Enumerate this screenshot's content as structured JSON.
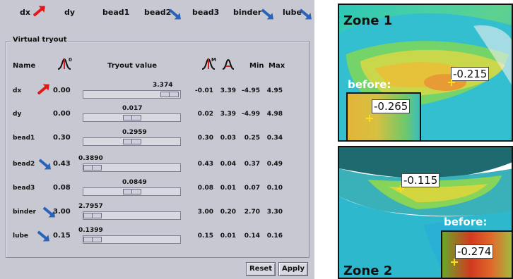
{
  "toolbar": {
    "items": [
      {
        "label": "dx",
        "arrow": "red"
      },
      {
        "label": "dy",
        "arrow": "none"
      },
      {
        "label": "bead1",
        "arrow": "none"
      },
      {
        "label": "bead2",
        "arrow": "blue"
      },
      {
        "label": "bead3",
        "arrow": "none"
      },
      {
        "label": "binder",
        "arrow": "blue"
      },
      {
        "label": "lube",
        "arrow": "blue"
      }
    ]
  },
  "panel": {
    "title": "Virtual tryout",
    "headers": {
      "name": "Name",
      "tryout_value": "Tryout value",
      "min": "Min",
      "max": "Max",
      "icon_initial_sup": "0",
      "icon_mean_sup": "M"
    },
    "rows": [
      {
        "name": "dx",
        "arrow": "red",
        "initial": "0.00",
        "slider_label": "3.374",
        "slider_fraction": 0.98,
        "mean": "-0.01",
        "std": "3.39",
        "min": "-4.95",
        "max": "4.95"
      },
      {
        "name": "dy",
        "arrow": "none",
        "initial": "0.00",
        "slider_label": "0.017",
        "slider_fraction": 0.5,
        "mean": "0.02",
        "std": "3.39",
        "min": "-4.99",
        "max": "4.98"
      },
      {
        "name": "bead1",
        "arrow": "none",
        "initial": "0.30",
        "slider_label": "0.2959",
        "slider_fraction": 0.5,
        "mean": "0.30",
        "std": "0.03",
        "min": "0.25",
        "max": "0.34"
      },
      {
        "name": "bead2",
        "arrow": "blue",
        "initial": "0.43",
        "slider_label": "0.3890",
        "slider_fraction": 0.0,
        "mean": "0.43",
        "std": "0.04",
        "min": "0.37",
        "max": "0.49"
      },
      {
        "name": "bead3",
        "arrow": "none",
        "initial": "0.08",
        "slider_label": "0.0849",
        "slider_fraction": 0.5,
        "mean": "0.08",
        "std": "0.01",
        "min": "0.07",
        "max": "0.10"
      },
      {
        "name": "binder",
        "arrow": "blue",
        "initial": "3.00",
        "slider_label": "2.7957",
        "slider_fraction": 0.0,
        "mean": "3.00",
        "std": "0.20",
        "min": "2.70",
        "max": "3.30"
      },
      {
        "name": "lube",
        "arrow": "blue",
        "initial": "0.15",
        "slider_label": "0.1399",
        "slider_fraction": 0.0,
        "mean": "0.15",
        "std": "0.01",
        "min": "0.14",
        "max": "0.16"
      }
    ],
    "buttons": {
      "reset": "Reset",
      "apply": "Apply"
    }
  },
  "zones": {
    "zone1": {
      "title": "Zone 1",
      "before_label": "before:",
      "value_main": "-0.215",
      "value_before": "-0.265"
    },
    "zone2": {
      "title": "Zone 2",
      "before_label": "before:",
      "value_main": "-0.115",
      "value_before": "-0.274"
    }
  },
  "colors": {
    "panel_bg": "#c8c8d2",
    "arrow_red": "#e01818",
    "arrow_blue": "#2a63b5",
    "marker": "#f8e020"
  }
}
